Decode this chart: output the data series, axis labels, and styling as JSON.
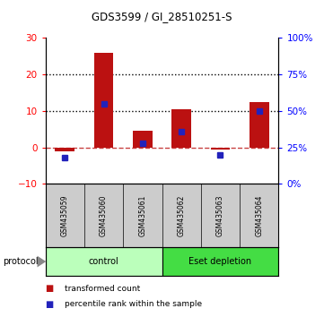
{
  "title": "GDS3599 / GI_28510251-S",
  "samples": [
    "GSM435059",
    "GSM435060",
    "GSM435061",
    "GSM435062",
    "GSM435063",
    "GSM435064"
  ],
  "red_values": [
    -1.0,
    26.0,
    4.5,
    10.5,
    -0.5,
    12.5
  ],
  "blue_pct": [
    18,
    55,
    28,
    36,
    20,
    50
  ],
  "ylim_left": [
    -10,
    30
  ],
  "ylim_right": [
    0,
    100
  ],
  "yticks_left": [
    -10,
    0,
    10,
    20,
    30
  ],
  "yticks_right": [
    0,
    25,
    50,
    75,
    100
  ],
  "group_labels": [
    "control",
    "Eset depletion"
  ],
  "control_color": "#bbffbb",
  "eset_color": "#44dd44",
  "bar_color": "#bb1111",
  "blue_color": "#2222bb",
  "bg_color": "#ffffff",
  "xlabels_bg": "#cccccc",
  "legend_red": "transformed count",
  "legend_blue": "percentile rank within the sample",
  "protocol_label": "protocol"
}
